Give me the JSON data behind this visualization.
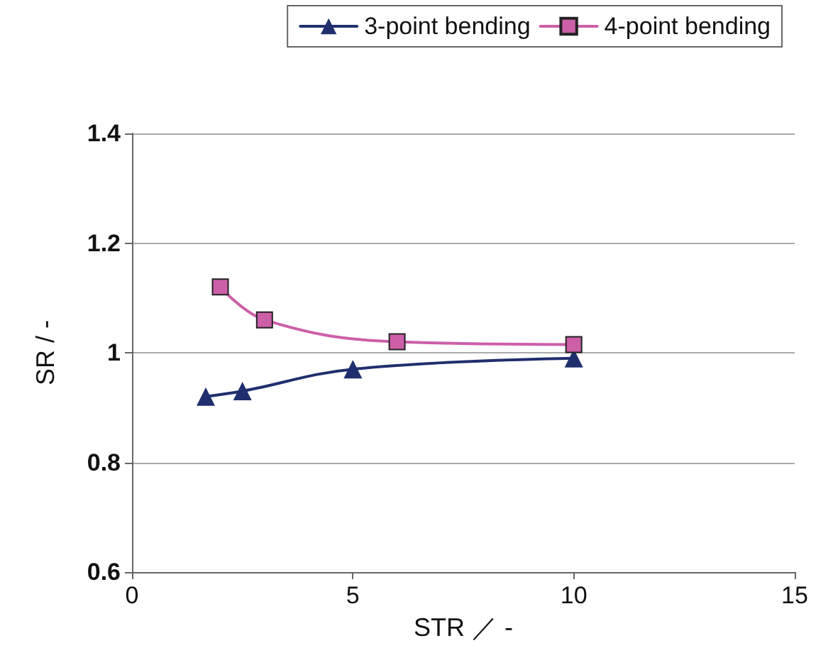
{
  "chart_data": {
    "type": "line",
    "xlabel": "STR ／ -",
    "ylabel": "SR / -",
    "series": [
      {
        "name": "3-point bending",
        "color": "#1f2f6e",
        "marker": "triangle",
        "x": [
          1.67,
          2.5,
          5,
          10
        ],
        "values": [
          0.92,
          0.93,
          0.97,
          0.99
        ]
      },
      {
        "name": "4-point bending",
        "color": "#cc5fa8",
        "marker": "square",
        "x": [
          2,
          3,
          6,
          10
        ],
        "values": [
          1.12,
          1.06,
          1.02,
          1.015
        ]
      }
    ],
    "xlim": [
      0,
      15
    ],
    "xticks": [
      0,
      5,
      10,
      15
    ],
    "ylim": [
      0.6,
      1.4
    ],
    "yticks": [
      0.6,
      0.8,
      1,
      1.2,
      1.4
    ],
    "grid": "y",
    "legend": "top right",
    "line_style": "solid"
  }
}
